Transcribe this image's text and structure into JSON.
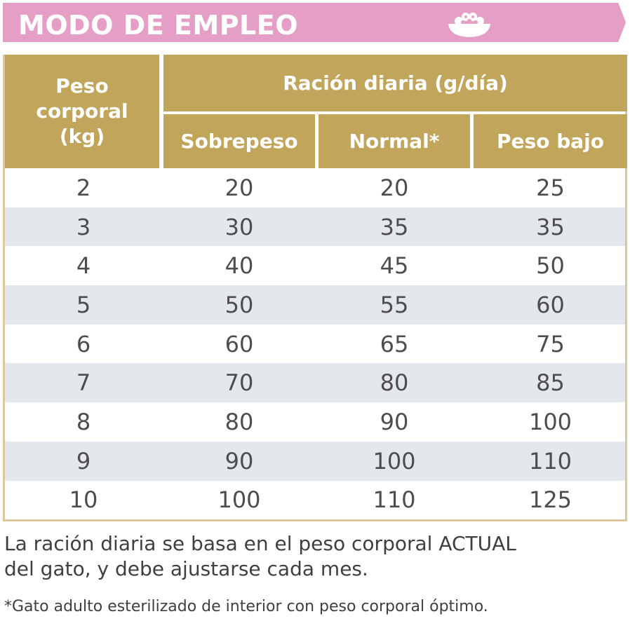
{
  "banner": {
    "title": "MODO DE EMPLEO",
    "icon": "food-bowl-icon",
    "color": "#e59fc6"
  },
  "table": {
    "header_color": "#c0a55b",
    "stripe_color": "#e4e8ec",
    "weight_header": {
      "line1": "Peso",
      "line2": "corporal",
      "line3": "(kg)"
    },
    "ration_header": "Ración diaria (g/día)",
    "sub_headers": [
      "Sobrepeso",
      "Normal*",
      "Peso bajo"
    ],
    "rows": [
      {
        "weight": "2",
        "over": "20",
        "normal": "20",
        "under": "25"
      },
      {
        "weight": "3",
        "over": "30",
        "normal": "35",
        "under": "35"
      },
      {
        "weight": "4",
        "over": "40",
        "normal": "45",
        "under": "50"
      },
      {
        "weight": "5",
        "over": "50",
        "normal": "55",
        "under": "60"
      },
      {
        "weight": "6",
        "over": "60",
        "normal": "65",
        "under": "75"
      },
      {
        "weight": "7",
        "over": "70",
        "normal": "80",
        "under": "85"
      },
      {
        "weight": "8",
        "over": "80",
        "normal": "90",
        "under": "100"
      },
      {
        "weight": "9",
        "over": "90",
        "normal": "100",
        "under": "110"
      },
      {
        "weight": "10",
        "over": "100",
        "normal": "110",
        "under": "125"
      }
    ]
  },
  "notes": {
    "main_line1": "La ración diaria se basa en el peso corporal ACTUAL",
    "main_line2": "del gato, y debe ajustarse cada mes.",
    "footnote": "*Gato adulto esterilizado de interior con peso corporal óptimo."
  }
}
